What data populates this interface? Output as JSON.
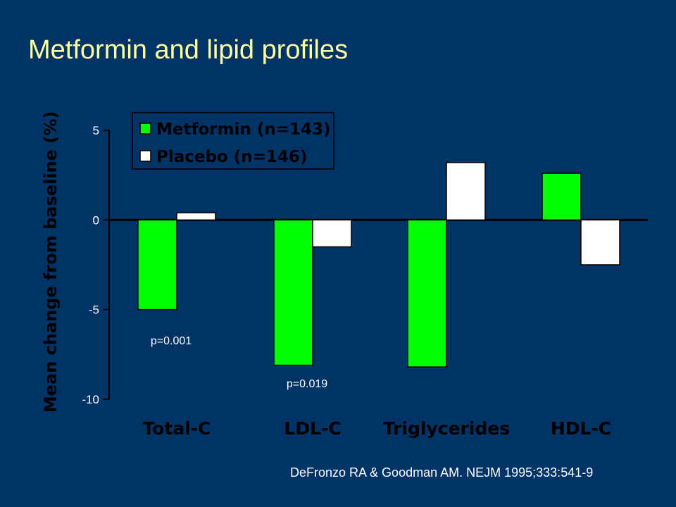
{
  "slide": {
    "title": "Metformin and lipid profiles",
    "citation": "DeFronzo RA & Goodman AM. NEJM 1995;333:541-9"
  },
  "chart_data": {
    "type": "bar",
    "title": "",
    "xlabel": "",
    "ylabel": "Mean change from baseline (%)",
    "ylim": [
      -10,
      5
    ],
    "yticks": [
      5,
      0,
      -5,
      -10
    ],
    "categories": [
      "Total-C",
      "LDL-C",
      "Triglycerides",
      "HDL-C"
    ],
    "series": [
      {
        "name": "Metformin (n=143)",
        "color": "#00ff00",
        "values": [
          -5.0,
          -8.1,
          -8.2,
          2.6
        ]
      },
      {
        "name": "Placebo (n=146)",
        "color": "#ffffff",
        "values": [
          0.4,
          -1.5,
          3.2,
          -2.5
        ]
      }
    ],
    "annotations": [
      {
        "text": "p=0.001",
        "category": "Total-C",
        "value": -6.7
      },
      {
        "text": "p=0.019",
        "category": "LDL-C",
        "value": -9.1
      }
    ],
    "legend_position": "top-left"
  }
}
